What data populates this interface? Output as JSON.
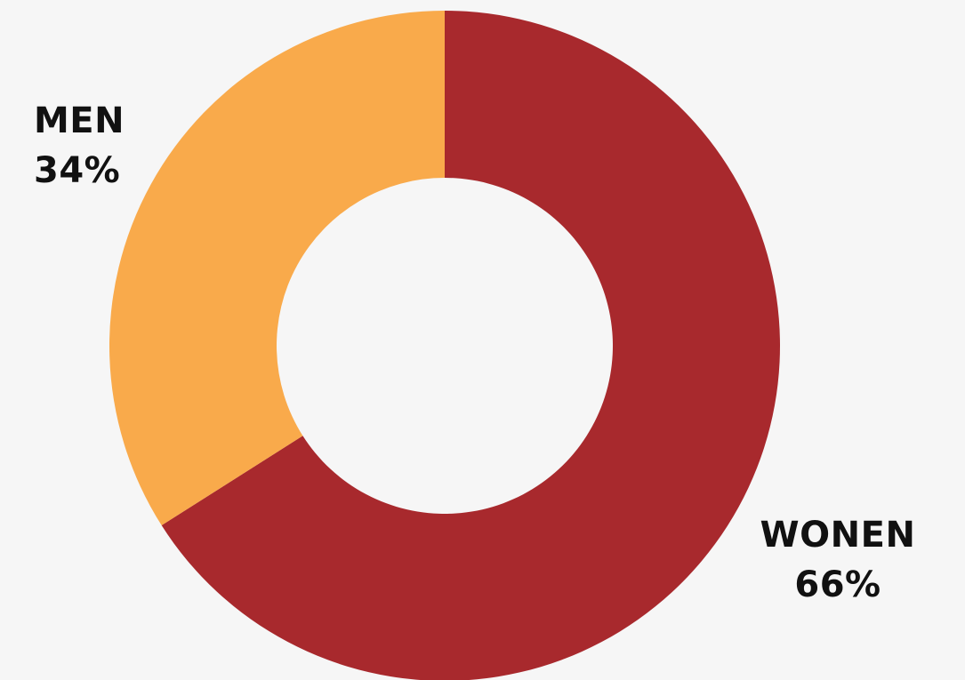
{
  "chart_data": {
    "type": "pie",
    "style": "donut",
    "title": "",
    "slices": [
      {
        "label": "WONEN",
        "value": 66,
        "display": "66%",
        "color": "#a8292d"
      },
      {
        "label": "MEN",
        "value": 34,
        "display": "34%",
        "color": "#f9aa4b"
      }
    ],
    "legend": "none",
    "background": "#f6f6f6"
  }
}
